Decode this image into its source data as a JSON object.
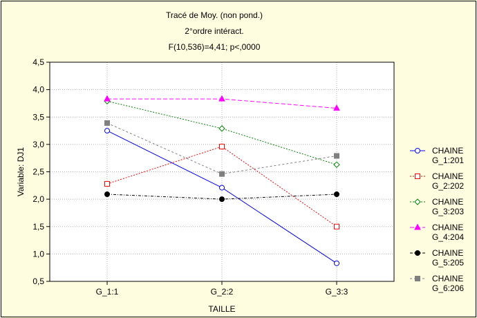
{
  "chart_data": {
    "type": "line",
    "title": [
      "Tracé de Moy. (non pond.)",
      "2°ordre intéract.",
      "F(10,536)=4,41; p<,0000"
    ],
    "xlabel": "TAILLE",
    "ylabel": "Variable: DJ1",
    "categories": [
      "G_1:1",
      "G_2:2",
      "G_3:3"
    ],
    "ylim": [
      0.5,
      4.5
    ],
    "yticks": [
      "0,5",
      "1,0",
      "1,5",
      "2,0",
      "2,5",
      "3,0",
      "3,5",
      "4,0",
      "4,5"
    ],
    "grid": true,
    "legend_position": "right",
    "series": [
      {
        "name": [
          "CHAINE",
          "G_1:201"
        ],
        "values": [
          3.25,
          2.21,
          0.83
        ],
        "color": "#0000ff",
        "dash": "",
        "marker": "circle-open"
      },
      {
        "name": [
          "CHAINE",
          "G_2:202"
        ],
        "values": [
          2.28,
          2.96,
          1.5
        ],
        "color": "#ff0000",
        "dash": "2,2",
        "marker": "square-open"
      },
      {
        "name": [
          "CHAINE",
          "G_3:203"
        ],
        "values": [
          3.79,
          3.29,
          2.63
        ],
        "color": "#008000",
        "dash": "2,2",
        "marker": "diamond-open"
      },
      {
        "name": [
          "CHAINE",
          "G_4:204"
        ],
        "values": [
          3.83,
          3.83,
          3.66
        ],
        "color": "#ff00ff",
        "dash": "6,3",
        "marker": "triangle"
      },
      {
        "name": [
          "CHAINE",
          "G_5:205"
        ],
        "values": [
          2.09,
          2.0,
          2.09
        ],
        "color": "#000000",
        "dash": "4,2,1,2",
        "marker": "circle-filled"
      },
      {
        "name": [
          "CHAINE",
          "G_6:206"
        ],
        "values": [
          3.39,
          2.46,
          2.79
        ],
        "color": "#808080",
        "dash": "3,3",
        "marker": "square-filled"
      }
    ]
  }
}
